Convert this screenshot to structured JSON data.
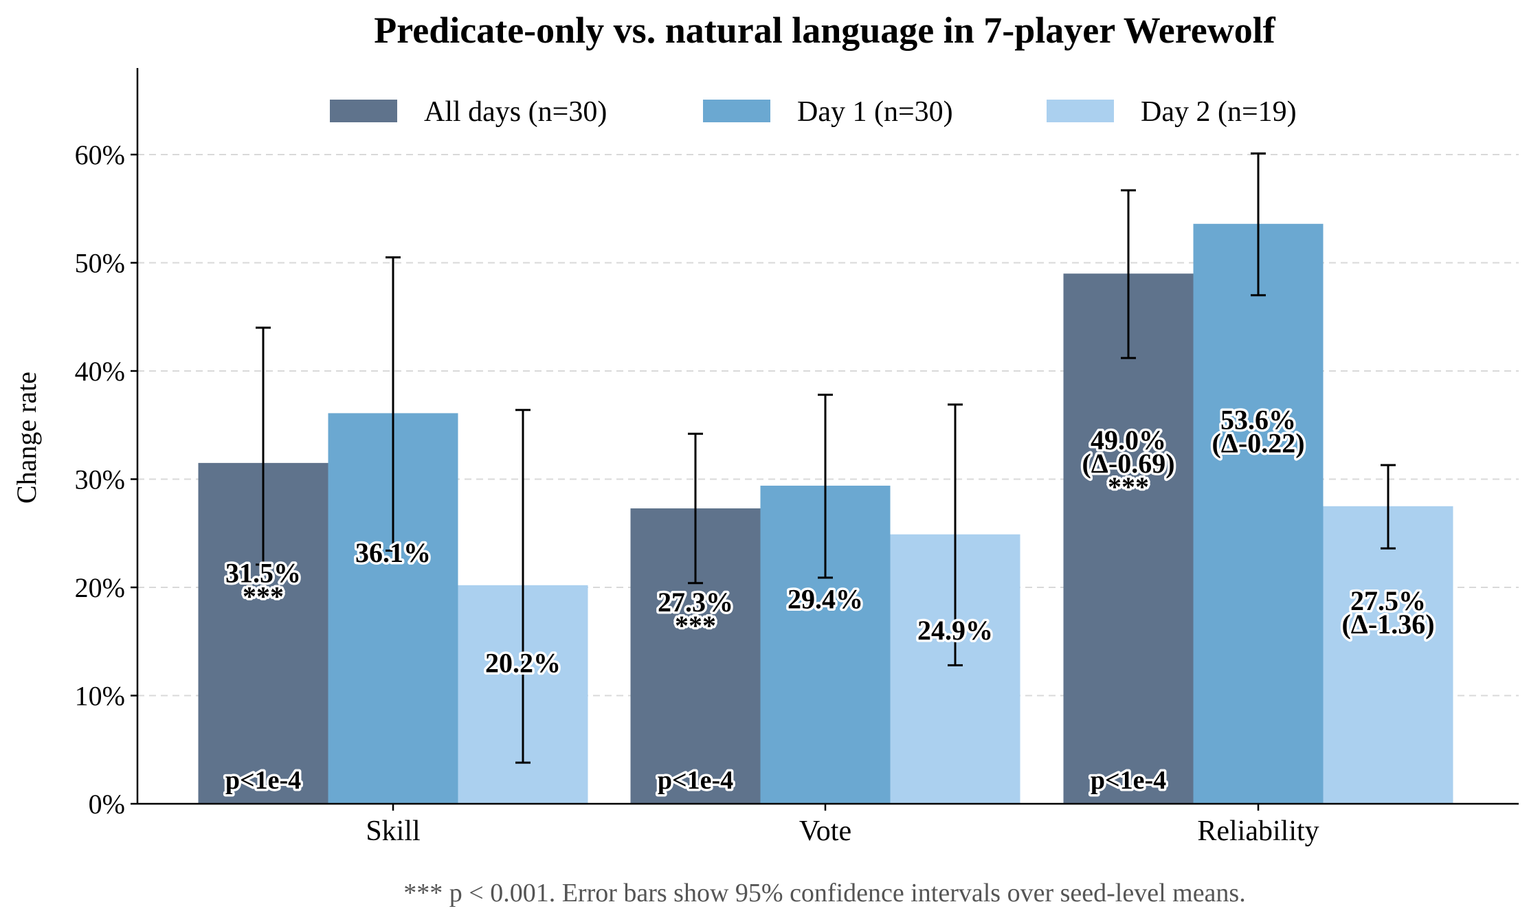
{
  "chart_data": {
    "type": "bar",
    "title": "Predicate-only vs. natural language in 7-player Werewolf",
    "xlabel": "",
    "ylabel": "Change rate",
    "ylim": [
      0,
      68
    ],
    "yticks": [
      "0%",
      "10%",
      "20%",
      "30%",
      "40%",
      "50%",
      "60%"
    ],
    "ytick_values": [
      0,
      10,
      20,
      30,
      40,
      50,
      60
    ],
    "grid": "horizontal dashed",
    "legend_position": "top-center",
    "categories": [
      "Skill",
      "Vote",
      "Reliability"
    ],
    "series": [
      {
        "name": "All days (n=30)",
        "color": "#5f738c",
        "values": [
          31.5,
          27.3,
          49.0
        ],
        "ci": [
          [
            22.1,
            44.0
          ],
          [
            20.4,
            34.2
          ],
          [
            41.2,
            56.7
          ]
        ],
        "labels": [
          "31.5%\n***",
          "27.3%\n***",
          "49.0%\n(Δ-0.69)\n***"
        ],
        "bottom_labels": [
          "p<1e-4",
          "p<1e-4",
          "p<1e-4"
        ]
      },
      {
        "name": "Day 1 (n=30)",
        "color": "#6ba8d1",
        "values": [
          36.1,
          29.4,
          53.6
        ],
        "ci": [
          [
            23.4,
            50.5
          ],
          [
            20.9,
            37.8
          ],
          [
            47.0,
            60.1
          ]
        ],
        "labels": [
          "36.1%",
          "29.4%",
          "53.6%\n(Δ-0.22)"
        ],
        "bottom_labels": [
          "",
          "",
          ""
        ]
      },
      {
        "name": "Day 2 (n=19)",
        "color": "#abd0ef",
        "values": [
          20.2,
          24.9,
          27.5
        ],
        "ci": [
          [
            3.8,
            36.4
          ],
          [
            12.8,
            36.9
          ],
          [
            23.6,
            31.3
          ]
        ],
        "labels": [
          "20.2%",
          "24.9%",
          "27.5%\n(Δ-1.36)"
        ],
        "bottom_labels": [
          "",
          "",
          ""
        ]
      }
    ],
    "footnote": "*** p < 0.001. Error bars show 95% confidence intervals over seed-level means."
  }
}
